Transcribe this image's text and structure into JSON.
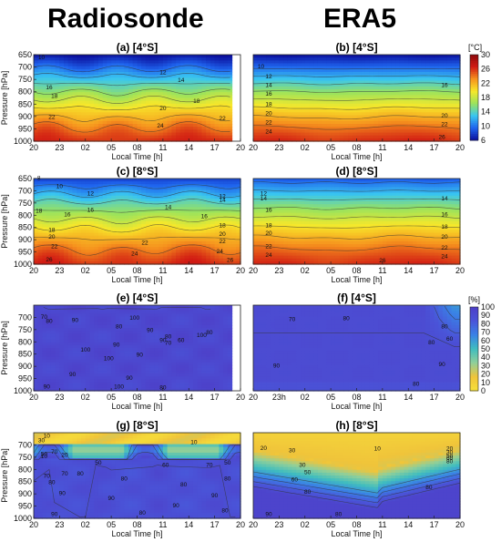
{
  "figure": {
    "left_header": "Radiosonde",
    "right_header": "ERA5"
  },
  "colorbars": [
    {
      "unit": "[°C]",
      "ticks": [
        30,
        26,
        22,
        18,
        14,
        10,
        6
      ],
      "colors": [
        "#0b0e9c",
        "#1f64ee",
        "#39c6f0",
        "#9be35c",
        "#f7e82a",
        "#f6931e",
        "#d11a13",
        "#8c0a0c"
      ],
      "range": [
        6,
        30
      ]
    },
    {
      "unit": "[%]",
      "ticks": [
        100,
        90,
        80,
        70,
        60,
        50,
        40,
        30,
        20,
        10,
        0
      ],
      "colors": [
        "#f7e03a",
        "#f0c43a",
        "#8fcf9a",
        "#3fbdbf",
        "#3a82e6",
        "#4a54d8",
        "#4e3fc8"
      ],
      "range": [
        0,
        100
      ]
    }
  ],
  "chart_data": [
    {
      "type": "heatmap",
      "panel": "a",
      "title": "(a) [4°S]",
      "variable": "temperature",
      "xlabel": "Local Time [h]",
      "ylabel": "Pressure [hPa]",
      "xticks": [
        "20",
        "23",
        "02",
        "05",
        "08",
        "11",
        "14",
        "17",
        "20"
      ],
      "yticks": [
        "650",
        "700",
        "750",
        "800",
        "850",
        "900",
        "950",
        "1000"
      ],
      "ylim": [
        650,
        1000
      ],
      "data_coverage": [
        0,
        7.6
      ],
      "surface_temp": 26,
      "top_temp": 6,
      "shape": 1.25,
      "noise": 0.9,
      "contours": [
        {
          "label": "10",
          "x": 0.3,
          "p": 668
        },
        {
          "label": "12",
          "x": 5.0,
          "p": 730
        },
        {
          "label": "14",
          "x": 5.7,
          "p": 760
        },
        {
          "label": "16",
          "x": 0.6,
          "p": 790
        },
        {
          "label": "18",
          "x": 0.8,
          "p": 825
        },
        {
          "label": "18",
          "x": 6.3,
          "p": 845
        },
        {
          "label": "20",
          "x": 5.0,
          "p": 875
        },
        {
          "label": "22",
          "x": 0.7,
          "p": 910
        },
        {
          "label": "22",
          "x": 7.3,
          "p": 915
        },
        {
          "label": "24",
          "x": 4.9,
          "p": 945
        }
      ]
    },
    {
      "type": "heatmap",
      "panel": "b",
      "title": "(b) [4°S]",
      "variable": "temperature",
      "xlabel": "Local Time [h]",
      "ylabel": "",
      "xticks": [
        "20",
        "23",
        "02",
        "05",
        "08",
        "11",
        "14",
        "17",
        "20"
      ],
      "yticks": [],
      "ylim": [
        650,
        1000
      ],
      "data_coverage": [
        0,
        8
      ],
      "surface_temp": 26,
      "top_temp": 6,
      "shape": 1.25,
      "noise": 0.15,
      "contours": [
        {
          "label": "10",
          "x": 0.3,
          "p": 705
        },
        {
          "label": "12",
          "x": 0.6,
          "p": 745
        },
        {
          "label": "14",
          "x": 0.6,
          "p": 780
        },
        {
          "label": "16",
          "x": 7.4,
          "p": 780
        },
        {
          "label": "16",
          "x": 0.6,
          "p": 815
        },
        {
          "label": "18",
          "x": 0.6,
          "p": 858
        },
        {
          "label": "20",
          "x": 0.6,
          "p": 895
        },
        {
          "label": "20",
          "x": 7.4,
          "p": 905
        },
        {
          "label": "22",
          "x": 0.6,
          "p": 932
        },
        {
          "label": "22",
          "x": 7.4,
          "p": 940
        },
        {
          "label": "24",
          "x": 0.6,
          "p": 968
        },
        {
          "label": "26",
          "x": 7.3,
          "p": 990
        }
      ]
    },
    {
      "type": "heatmap",
      "panel": "c",
      "title": "(c) [8°S]",
      "variable": "temperature",
      "xlabel": "Local Time [h]",
      "ylabel": "Pressure [hPa]",
      "xticks": [
        "20",
        "23",
        "02",
        "05",
        "08",
        "11",
        "14",
        "17",
        "20"
      ],
      "yticks": [
        "650",
        "700",
        "750",
        "800",
        "850",
        "900",
        "950",
        "1000"
      ],
      "ylim": [
        650,
        1000
      ],
      "data_coverage": [
        0,
        8
      ],
      "surface_temp": 26,
      "top_temp": 8,
      "shape": 1.25,
      "noise": 0.8,
      "contours": [
        {
          "label": "8",
          "x": 0.2,
          "p": 655
        },
        {
          "label": "10",
          "x": 1.0,
          "p": 690
        },
        {
          "label": "12",
          "x": 2.2,
          "p": 718
        },
        {
          "label": "12",
          "x": 7.3,
          "p": 730
        },
        {
          "label": "14",
          "x": 5.2,
          "p": 775
        },
        {
          "label": "14",
          "x": 7.3,
          "p": 745
        },
        {
          "label": "18",
          "x": 0.2,
          "p": 790
        },
        {
          "label": "16",
          "x": 1.3,
          "p": 805
        },
        {
          "label": "16",
          "x": 2.2,
          "p": 785
        },
        {
          "label": "16",
          "x": 6.6,
          "p": 812
        },
        {
          "label": "18",
          "x": 7.3,
          "p": 850
        },
        {
          "label": "18",
          "x": 0.7,
          "p": 868
        },
        {
          "label": "20",
          "x": 0.7,
          "p": 895
        },
        {
          "label": "20",
          "x": 7.3,
          "p": 885
        },
        {
          "label": "22",
          "x": 4.3,
          "p": 920
        },
        {
          "label": "22",
          "x": 7.3,
          "p": 915
        },
        {
          "label": "22",
          "x": 0.8,
          "p": 935
        },
        {
          "label": "24",
          "x": 3.9,
          "p": 965
        },
        {
          "label": "24",
          "x": 7.2,
          "p": 955
        },
        {
          "label": "26",
          "x": 0.6,
          "p": 988
        },
        {
          "label": "26",
          "x": 7.6,
          "p": 990
        }
      ]
    },
    {
      "type": "heatmap",
      "panel": "d",
      "title": "(d) [8°S]",
      "variable": "temperature",
      "xlabel": "Local Time [h]",
      "ylabel": "",
      "xticks": [
        "20",
        "23",
        "02",
        "05",
        "08",
        "11",
        "14",
        "17",
        "20"
      ],
      "yticks": [],
      "ylim": [
        650,
        1000
      ],
      "data_coverage": [
        0,
        8
      ],
      "surface_temp": 26,
      "top_temp": 9,
      "shape": 1.25,
      "noise": 0.2,
      "contours": [
        {
          "label": "12",
          "x": 0.4,
          "p": 718
        },
        {
          "label": "14",
          "x": 0.4,
          "p": 740
        },
        {
          "label": "14",
          "x": 7.4,
          "p": 740
        },
        {
          "label": "16",
          "x": 0.6,
          "p": 785
        },
        {
          "label": "16",
          "x": 7.4,
          "p": 805
        },
        {
          "label": "18",
          "x": 0.6,
          "p": 850
        },
        {
          "label": "18",
          "x": 7.4,
          "p": 855
        },
        {
          "label": "20",
          "x": 0.6,
          "p": 880
        },
        {
          "label": "20",
          "x": 7.4,
          "p": 895
        },
        {
          "label": "22",
          "x": 0.6,
          "p": 935
        },
        {
          "label": "22",
          "x": 7.4,
          "p": 940
        },
        {
          "label": "24",
          "x": 0.6,
          "p": 970
        },
        {
          "label": "24",
          "x": 7.4,
          "p": 975
        },
        {
          "label": "26",
          "x": 5.0,
          "p": 992
        }
      ]
    },
    {
      "type": "heatmap",
      "panel": "e",
      "title": "(e) [4°S]",
      "variable": "relative_humidity",
      "xlabel": "Local Time [h]",
      "ylabel": "Pressure [hPa]",
      "xticks": [
        "20",
        "23",
        "02",
        "05",
        "08",
        "11",
        "14",
        "17",
        "20"
      ],
      "yticks": [
        "700",
        "750",
        "800",
        "850",
        "900",
        "950",
        "1000"
      ],
      "ylim": [
        650,
        1000
      ],
      "data_coverage": [
        0,
        7.6
      ],
      "base_rh": 93,
      "dry_top": 0,
      "dry_layer": 0,
      "noise": 5,
      "contours": [
        {
          "label": "70",
          "x": 0.4,
          "p": 705
        },
        {
          "label": "80",
          "x": 0.6,
          "p": 722
        },
        {
          "label": "90",
          "x": 1.6,
          "p": 718
        },
        {
          "label": "80",
          "x": 3.3,
          "p": 745
        },
        {
          "label": "90",
          "x": 4.5,
          "p": 760
        },
        {
          "label": "90",
          "x": 5.0,
          "p": 800
        },
        {
          "label": "80",
          "x": 5.2,
          "p": 785
        },
        {
          "label": "60",
          "x": 5.7,
          "p": 800
        },
        {
          "label": "70",
          "x": 5.2,
          "p": 812
        },
        {
          "label": "100",
          "x": 6.5,
          "p": 780
        },
        {
          "label": "80",
          "x": 6.8,
          "p": 770
        },
        {
          "label": "100",
          "x": 2.0,
          "p": 840
        },
        {
          "label": "90",
          "x": 3.2,
          "p": 820
        },
        {
          "label": "100",
          "x": 2.9,
          "p": 875
        },
        {
          "label": "90",
          "x": 4.1,
          "p": 860
        },
        {
          "label": "90",
          "x": 1.5,
          "p": 940
        },
        {
          "label": "90",
          "x": 3.7,
          "p": 955
        },
        {
          "label": "100",
          "x": 3.3,
          "p": 990
        },
        {
          "label": "80",
          "x": 5.0,
          "p": 995
        },
        {
          "label": "90",
          "x": 0.5,
          "p": 990
        },
        {
          "label": "100",
          "x": 3.9,
          "p": 710
        }
      ]
    },
    {
      "type": "heatmap",
      "panel": "f",
      "title": "(f) [4°S]",
      "variable": "relative_humidity",
      "xlabel": "Local Time [h]",
      "ylabel": "",
      "xticks": [
        "20",
        "23h",
        "02",
        "05",
        "08",
        "11",
        "14",
        "17",
        "20"
      ],
      "yticks": [],
      "ylim": [
        650,
        1000
      ],
      "data_coverage": [
        0,
        8
      ],
      "base_rh": 90,
      "dry_top": 0,
      "dry_layer": 0,
      "noise": 0.6,
      "contours": [
        {
          "label": "70",
          "x": 1.5,
          "p": 715
        },
        {
          "label": "80",
          "x": 3.6,
          "p": 712
        },
        {
          "label": "80",
          "x": 7.4,
          "p": 745
        },
        {
          "label": "60",
          "x": 7.6,
          "p": 795
        },
        {
          "label": "80",
          "x": 6.9,
          "p": 810
        },
        {
          "label": "90",
          "x": 0.9,
          "p": 905
        },
        {
          "label": "90",
          "x": 7.3,
          "p": 900
        },
        {
          "label": "80",
          "x": 6.3,
          "p": 980
        }
      ]
    },
    {
      "type": "heatmap",
      "panel": "g",
      "title": "(g) [8°S]",
      "variable": "relative_humidity",
      "xlabel": "Local Time [h]",
      "ylabel": "Pressure [hPa]",
      "xticks": [
        "20",
        "23",
        "02",
        "05",
        "08",
        "11",
        "14",
        "17",
        "20"
      ],
      "yticks": [
        "700",
        "750",
        "800",
        "850",
        "900",
        "950",
        "1000"
      ],
      "ylim": [
        650,
        1000
      ],
      "data_coverage": [
        0,
        8
      ],
      "base_rh": 90,
      "dry_top": 12,
      "dry_layer": 1,
      "noise": 4,
      "contours": [
        {
          "label": "10",
          "x": 0.5,
          "p": 670
        },
        {
          "label": "30",
          "x": 0.3,
          "p": 690
        },
        {
          "label": "10",
          "x": 6.2,
          "p": 697
        },
        {
          "label": "70",
          "x": 0.8,
          "p": 735
        },
        {
          "label": "50",
          "x": 0.4,
          "p": 745
        },
        {
          "label": "20",
          "x": 1.2,
          "p": 748
        },
        {
          "label": "10",
          "x": 0.4,
          "p": 755
        },
        {
          "label": "50",
          "x": 2.5,
          "p": 780
        },
        {
          "label": "60",
          "x": 5.1,
          "p": 790
        },
        {
          "label": "50",
          "x": 7.5,
          "p": 780
        },
        {
          "label": "70",
          "x": 6.8,
          "p": 790
        },
        {
          "label": "70",
          "x": 0.5,
          "p": 835
        },
        {
          "label": "70",
          "x": 1.2,
          "p": 825
        },
        {
          "label": "80",
          "x": 1.8,
          "p": 825
        },
        {
          "label": "80",
          "x": 0.7,
          "p": 860
        },
        {
          "label": "80",
          "x": 3.5,
          "p": 845
        },
        {
          "label": "80",
          "x": 5.8,
          "p": 870
        },
        {
          "label": "80",
          "x": 7.5,
          "p": 845
        },
        {
          "label": "90",
          "x": 1.1,
          "p": 905
        },
        {
          "label": "90",
          "x": 3.0,
          "p": 925
        },
        {
          "label": "90",
          "x": 7.0,
          "p": 915
        },
        {
          "label": "90",
          "x": 5.5,
          "p": 955
        },
        {
          "label": "90",
          "x": 0.8,
          "p": 990
        },
        {
          "label": "80",
          "x": 4.2,
          "p": 985
        },
        {
          "label": "80",
          "x": 7.4,
          "p": 975
        }
      ]
    },
    {
      "type": "heatmap",
      "panel": "h",
      "title": "(h) [8°S]",
      "variable": "relative_humidity",
      "xlabel": "Local Time [h]",
      "ylabel": "",
      "xticks": [
        "20",
        "23",
        "02",
        "05",
        "08",
        "11",
        "14",
        "17",
        "20"
      ],
      "yticks": [],
      "ylim": [
        650,
        1000
      ],
      "data_coverage": [
        0,
        8
      ],
      "base_rh": 95,
      "dry_top": 1,
      "dry_layer": 0,
      "noise": 0.5,
      "contours": [
        {
          "label": "10",
          "x": 4.8,
          "p": 722
        },
        {
          "label": "20",
          "x": 0.4,
          "p": 720
        },
        {
          "label": "30",
          "x": 1.5,
          "p": 730
        },
        {
          "label": "20",
          "x": 7.6,
          "p": 722
        },
        {
          "label": "30",
          "x": 7.6,
          "p": 738
        },
        {
          "label": "50",
          "x": 7.6,
          "p": 752
        },
        {
          "label": "60",
          "x": 7.6,
          "p": 762
        },
        {
          "label": "80",
          "x": 7.6,
          "p": 775
        },
        {
          "label": "30",
          "x": 1.9,
          "p": 790
        },
        {
          "label": "50",
          "x": 2.1,
          "p": 820
        },
        {
          "label": "60",
          "x": 1.6,
          "p": 850
        },
        {
          "label": "80",
          "x": 2.1,
          "p": 900
        },
        {
          "label": "80",
          "x": 6.8,
          "p": 880
        },
        {
          "label": "90",
          "x": 0.6,
          "p": 990
        },
        {
          "label": "80",
          "x": 3.3,
          "p": 990
        }
      ]
    }
  ]
}
